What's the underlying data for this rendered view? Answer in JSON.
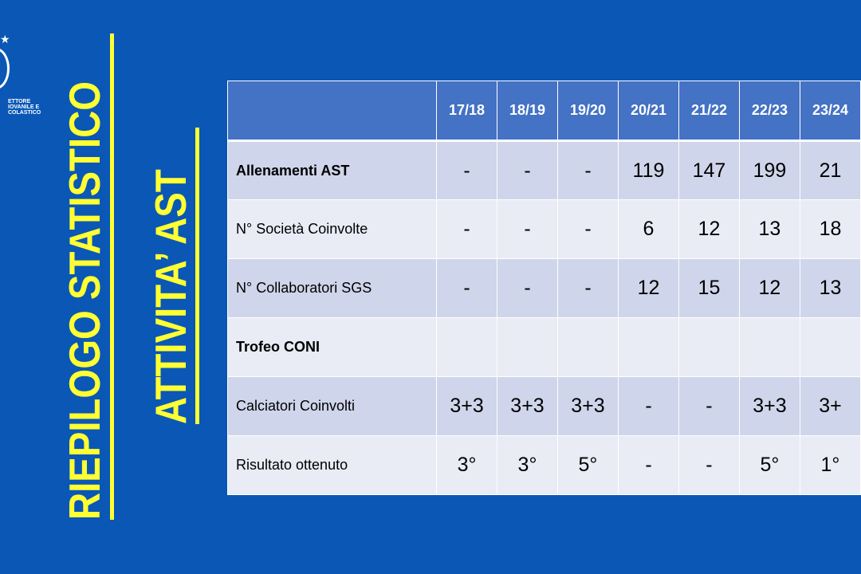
{
  "title_main": "RIEPILOGO STATISTICO",
  "title_sub": "ATTIVITA’ AST",
  "logo_text": [
    "ETTORE",
    "IOVANILE E",
    "COLASTICO"
  ],
  "table": {
    "headers": [
      "",
      "17/18",
      "18/19",
      "19/20",
      "20/21",
      "21/22",
      "22/23",
      "23/24"
    ],
    "rows": [
      {
        "label": "Allenamenti AST",
        "bold": true,
        "values": [
          "-",
          "-",
          "-",
          "119",
          "147",
          "199",
          "21"
        ]
      },
      {
        "label": "N° Società Coinvolte",
        "bold": false,
        "values": [
          "-",
          "-",
          "-",
          "6",
          "12",
          "13",
          "18"
        ]
      },
      {
        "label": "N° Collaboratori SGS",
        "bold": false,
        "values": [
          "-",
          "-",
          "-",
          "12",
          "15",
          "12",
          "13"
        ]
      },
      {
        "label": "Trofeo CONI",
        "bold": true,
        "values": [
          "",
          "",
          "",
          "",
          "",
          "",
          ""
        ]
      },
      {
        "label": "Calciatori Coinvolti",
        "bold": false,
        "values": [
          "3+3",
          "3+3",
          "3+3",
          "-",
          "-",
          "3+3",
          "3+"
        ]
      },
      {
        "label": "Risultato ottenuto",
        "bold": false,
        "values": [
          "3°",
          "3°",
          "5°",
          "-",
          "-",
          "5°",
          "1°"
        ]
      }
    ]
  },
  "colors": {
    "background": "#0a57b6",
    "title": "#ffff33",
    "header": "#4472c4",
    "row_dark": "#cfd5ea",
    "row_light": "#e9ebf5"
  }
}
